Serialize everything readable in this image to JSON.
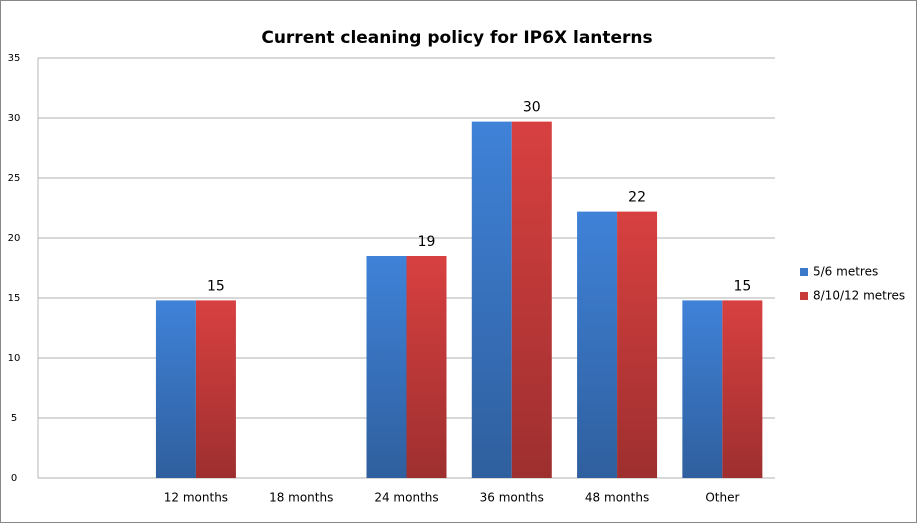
{
  "chart_data": {
    "type": "bar",
    "title": "Current cleaning policy for IP6X lanterns",
    "categories": [
      null,
      "12 months",
      "18 months",
      "24 months",
      "36 months",
      "48 months",
      "Other"
    ],
    "series": [
      {
        "name": "5/6 metres",
        "color": "#3a78c9",
        "values": [
          0,
          14.8,
          0,
          18.5,
          29.7,
          22.2,
          14.8
        ]
      },
      {
        "name": "8/10/12 metres",
        "color": "#c93a3a",
        "values": [
          0,
          14.8,
          0,
          18.5,
          29.7,
          22.2,
          14.8
        ],
        "value_labels": [
          null,
          "15",
          null,
          "19",
          "30",
          "22",
          "15"
        ]
      }
    ],
    "ylim": [
      0,
      35
    ],
    "yticks": [
      0,
      5,
      10,
      15,
      20,
      25,
      30,
      35
    ],
    "grid": true,
    "legend": "right"
  }
}
